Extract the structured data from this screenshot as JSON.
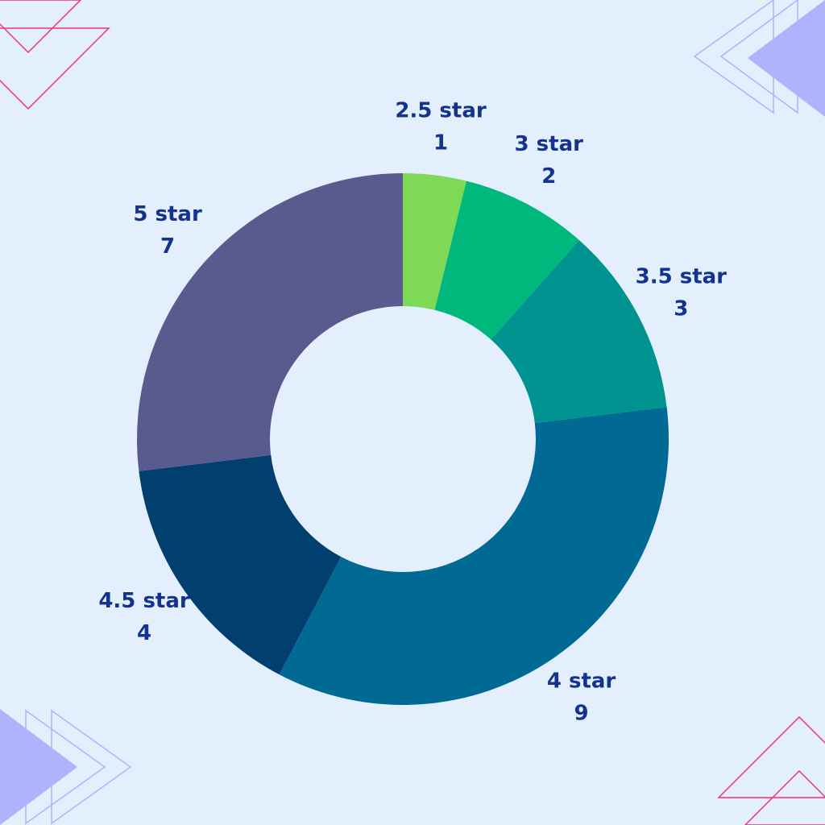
{
  "chart_data": {
    "type": "donut",
    "categories": [
      "2.5 star",
      "3 star",
      "3.5 star",
      "4 star",
      "4.5 star",
      "5 star"
    ],
    "values": [
      1,
      2,
      3,
      9,
      4,
      7
    ],
    "colors": [
      "#7ed957",
      "#00b87c",
      "#00938f",
      "#006994",
      "#003f6e",
      "#595b8f"
    ]
  }
}
